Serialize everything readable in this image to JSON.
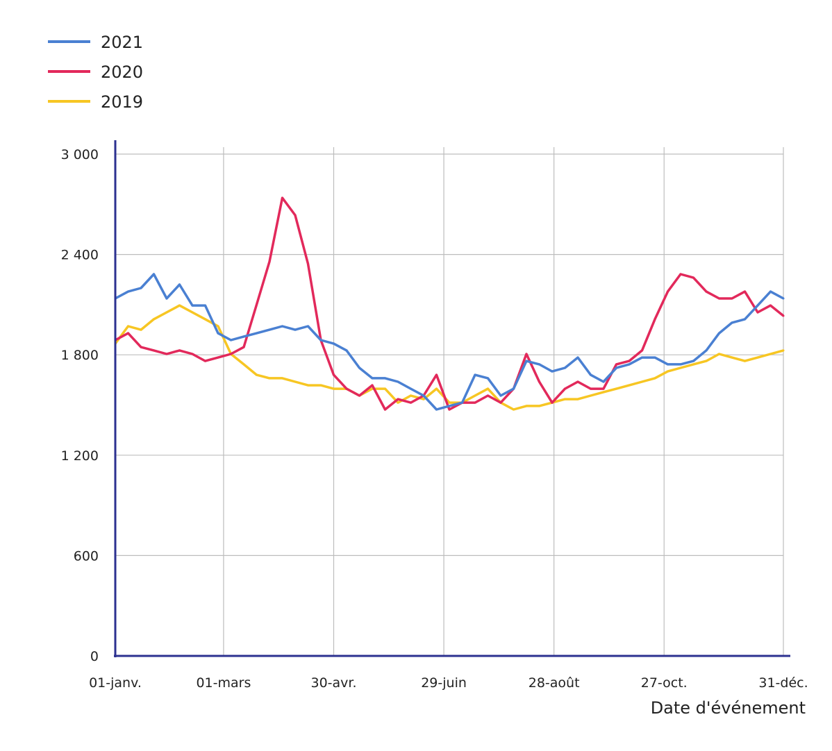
{
  "chart_data": {
    "type": "line",
    "title": "",
    "xlabel": "Date d'événement",
    "ylabel": "",
    "ylim": [
      0,
      3000
    ],
    "xlim_days": [
      0,
      364
    ],
    "grid": true,
    "legend_position": "top-left",
    "y_ticks": [
      {
        "value": 0,
        "label": "0"
      },
      {
        "value": 600,
        "label": "600"
      },
      {
        "value": 1200,
        "label": "1 200"
      },
      {
        "value": 1800,
        "label": "1 800"
      },
      {
        "value": 2400,
        "label": "2 400"
      },
      {
        "value": 3000,
        "label": "3 000"
      }
    ],
    "x_ticks": [
      {
        "day": 0,
        "label": "01-janv."
      },
      {
        "day": 59,
        "label": "01-mars"
      },
      {
        "day": 119,
        "label": "30-avr."
      },
      {
        "day": 179,
        "label": "29-juin"
      },
      {
        "day": 239,
        "label": "28-août"
      },
      {
        "day": 299,
        "label": "27-oct."
      },
      {
        "day": 364,
        "label": "31-déc."
      }
    ],
    "x_days": [
      0,
      7,
      14,
      21,
      28,
      35,
      42,
      49,
      56,
      63,
      70,
      77,
      84,
      91,
      98,
      105,
      112,
      119,
      126,
      133,
      140,
      147,
      154,
      161,
      168,
      175,
      182,
      189,
      196,
      203,
      210,
      217,
      224,
      231,
      238,
      245,
      252,
      259,
      266,
      273,
      280,
      287,
      294,
      301,
      308,
      315,
      322,
      329,
      336,
      343,
      350,
      357,
      364
    ],
    "series": [
      {
        "name": "2021",
        "color": "#4a80d2",
        "values": [
          2137,
          2178,
          2199,
          2282,
          2137,
          2220,
          2095,
          2095,
          1929,
          1888,
          1909,
          1929,
          1950,
          1971,
          1950,
          1971,
          1888,
          1867,
          1826,
          1722,
          1660,
          1660,
          1639,
          1597,
          1556,
          1473,
          1494,
          1514,
          1680,
          1660,
          1556,
          1597,
          1763,
          1743,
          1701,
          1722,
          1784,
          1680,
          1639,
          1722,
          1743,
          1784,
          1784,
          1743,
          1743,
          1763,
          1826,
          1929,
          1992,
          2013,
          2095,
          2178,
          2137
        ]
      },
      {
        "name": "2020",
        "color": "#e2295b",
        "values": [
          1888,
          1929,
          1846,
          1826,
          1805,
          1826,
          1805,
          1763,
          1784,
          1805,
          1846,
          2100,
          2357,
          2738,
          2635,
          2344,
          1888,
          1680,
          1597,
          1556,
          1618,
          1473,
          1535,
          1514,
          1556,
          1680,
          1473,
          1514,
          1514,
          1556,
          1514,
          1597,
          1805,
          1639,
          1514,
          1597,
          1639,
          1597,
          1597,
          1743,
          1763,
          1826,
          2013,
          2178,
          2282,
          2261,
          2178,
          2137,
          2137,
          2178,
          2054,
          2095,
          2033
        ]
      },
      {
        "name": "2019",
        "color": "#f7c623",
        "values": [
          1867,
          1971,
          1950,
          2013,
          2054,
          2095,
          2054,
          2013,
          1971,
          1805,
          1743,
          1680,
          1660,
          1660,
          1639,
          1618,
          1618,
          1597,
          1597,
          1556,
          1597,
          1597,
          1514,
          1556,
          1535,
          1597,
          1514,
          1514,
          1556,
          1597,
          1514,
          1473,
          1494,
          1494,
          1514,
          1535,
          1535,
          1556,
          1577,
          1597,
          1618,
          1639,
          1660,
          1701,
          1722,
          1743,
          1763,
          1805,
          1784,
          1763,
          1784,
          1805,
          1826
        ]
      }
    ],
    "axis_color": "#2c3190",
    "grid_color": "#bdbdbd"
  }
}
